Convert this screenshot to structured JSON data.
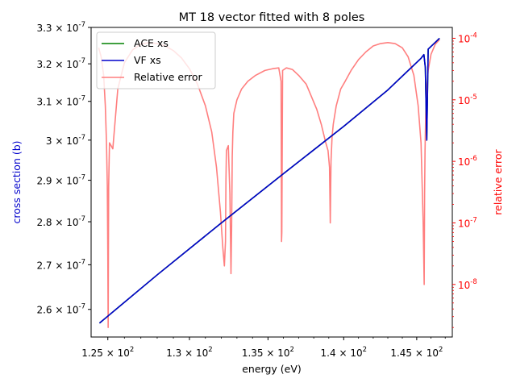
{
  "chart_data": {
    "type": "line",
    "title": "MT 18 vector fitted with 8 poles",
    "xlabel": "energy (eV)",
    "ylabel_left": "cross section (b)",
    "ylabel_right": "relative error",
    "xscale": "log",
    "yscale_left": "log",
    "yscale_right": "log",
    "xlim": [
      124.0,
      147.5
    ],
    "ylim_left": [
      2.54e-07,
      3.3e-07
    ],
    "ylim_right": [
      1.4e-09,
      0.00015
    ],
    "x_ticks": [
      {
        "value": 125,
        "label": "1.25 × 10^2"
      },
      {
        "value": 130,
        "label": "1.3 × 10^2"
      },
      {
        "value": 135,
        "label": "1.35 × 10^2"
      },
      {
        "value": 140,
        "label": "1.4 × 10^2"
      },
      {
        "value": 145,
        "label": "1.45 × 10^2"
      }
    ],
    "y_left_ticks": [
      {
        "value": 2.6e-07,
        "label": "2.6 × 10^-7"
      },
      {
        "value": 2.7e-07,
        "label": "2.7 × 10^-7"
      },
      {
        "value": 2.8e-07,
        "label": "2.8 × 10^-7"
      },
      {
        "value": 2.9e-07,
        "label": "2.9 × 10^-7"
      },
      {
        "value": 3e-07,
        "label": "3 × 10^-7"
      },
      {
        "value": 3.1e-07,
        "label": "3.1 × 10^-7"
      },
      {
        "value": 3.2e-07,
        "label": "3.2 × 10^-7"
      },
      {
        "value": 3.3e-07,
        "label": "3.3 × 10^-7"
      }
    ],
    "y_right_ticks": [
      {
        "value": 1e-08,
        "label": "10^-8"
      },
      {
        "value": 1e-07,
        "label": "10^-7"
      },
      {
        "value": 1e-06,
        "label": "10^-6"
      },
      {
        "value": 1e-05,
        "label": "10^-5"
      },
      {
        "value": 0.0001,
        "label": "10^-4"
      }
    ],
    "legend": {
      "position": "upper-left",
      "entries": [
        {
          "name": "ACE xs",
          "color": "#008000"
        },
        {
          "name": "VF xs",
          "color": "#0000cc"
        },
        {
          "name": "Relative error",
          "color": "#ff7f7f"
        }
      ]
    },
    "series": [
      {
        "name": "ACE xs",
        "axis": "left",
        "color": "#008000",
        "x": [
          124.5,
          128,
          132,
          136,
          140,
          143,
          145.3,
          145.5,
          145.6,
          145.7,
          145.8,
          146.2,
          146.6
        ],
        "y": [
          2.57e-07,
          2.677e-07,
          2.797e-07,
          2.916e-07,
          3.035e-07,
          3.13e-07,
          3.215e-07,
          3.225e-07,
          3.19e-07,
          3e-07,
          3.24e-07,
          3.255e-07,
          3.27e-07
        ]
      },
      {
        "name": "VF xs",
        "axis": "left",
        "color": "#0000cc",
        "x": [
          124.5,
          128,
          132,
          136,
          140,
          143,
          145.3,
          145.5,
          145.6,
          145.7,
          145.8,
          146.2,
          146.6
        ],
        "y": [
          2.57e-07,
          2.677e-07,
          2.797e-07,
          2.916e-07,
          3.035e-07,
          3.13e-07,
          3.215e-07,
          3.225e-07,
          3.19e-07,
          3e-07,
          3.24e-07,
          3.255e-07,
          3.27e-07
        ]
      },
      {
        "name": "Relative error",
        "axis": "right",
        "color": "#ff7f7f",
        "x": [
          124.45,
          124.6,
          124.75,
          124.85,
          124.92,
          124.97,
          125.0,
          125.02,
          125.05,
          125.1,
          125.3,
          125.6,
          126.0,
          126.5,
          127.0,
          127.5,
          128.0,
          128.5,
          129.0,
          129.5,
          130.0,
          130.5,
          131.0,
          131.4,
          131.7,
          131.95,
          132.1,
          132.2,
          132.27,
          132.3,
          132.33,
          132.45,
          132.55,
          132.62,
          132.66,
          132.7,
          132.74,
          132.8,
          133.0,
          133.3,
          133.7,
          134.2,
          134.8,
          135.3,
          135.7,
          135.85,
          135.88,
          135.9,
          135.95,
          136.2,
          136.6,
          137.0,
          137.5,
          137.8,
          138.2,
          138.5,
          138.8,
          138.95,
          139.05,
          139.1,
          139.15,
          139.22,
          139.3,
          139.5,
          139.8,
          140.1,
          140.5,
          141.0,
          141.5,
          142.0,
          142.5,
          143.0,
          143.5,
          144.0,
          144.4,
          144.8,
          145.1,
          145.3,
          145.45,
          145.52,
          145.55,
          145.58,
          145.62,
          145.7,
          145.8,
          146.0,
          146.3,
          146.6
        ],
        "y": [
          7e-05,
          5e-05,
          2.5e-05,
          8e-06,
          2e-06,
          4e-07,
          3e-08,
          2e-09,
          4e-07,
          2e-06,
          1.6e-06,
          1.5e-05,
          4e-05,
          6.5e-05,
          8e-05,
          8.5e-05,
          8.2e-05,
          7.5e-05,
          6.3e-05,
          4.8e-05,
          3.2e-05,
          1.8e-05,
          8e-06,
          3e-06,
          8e-07,
          1.5e-07,
          4e-08,
          2e-08,
          5e-08,
          5e-07,
          1.5e-06,
          1.8e-06,
          3e-07,
          1.5e-08,
          8e-08,
          1.2e-06,
          3e-06,
          6e-06,
          1e-05,
          1.5e-05,
          2e-05,
          2.5e-05,
          3e-05,
          3.2e-05,
          3.3e-05,
          2e-05,
          5e-08,
          7e-08,
          3e-05,
          3.3e-05,
          3.1e-05,
          2.5e-05,
          1.8e-05,
          1.2e-05,
          7e-06,
          4e-06,
          2e-06,
          1.5e-06,
          8e-07,
          1e-07,
          1e-06,
          2.5e-06,
          4e-06,
          8e-06,
          1.5e-05,
          2e-05,
          3e-05,
          4.5e-05,
          6e-05,
          7.5e-05,
          8.2e-05,
          8.5e-05,
          8.2e-05,
          7e-05,
          5e-05,
          2.5e-05,
          8e-06,
          2e-06,
          1e-07,
          1e-08,
          3e-07,
          1.5e-06,
          5e-06,
          1.5e-05,
          3e-05,
          5.5e-05,
          8e-05,
          9.5e-05
        ]
      }
    ]
  }
}
